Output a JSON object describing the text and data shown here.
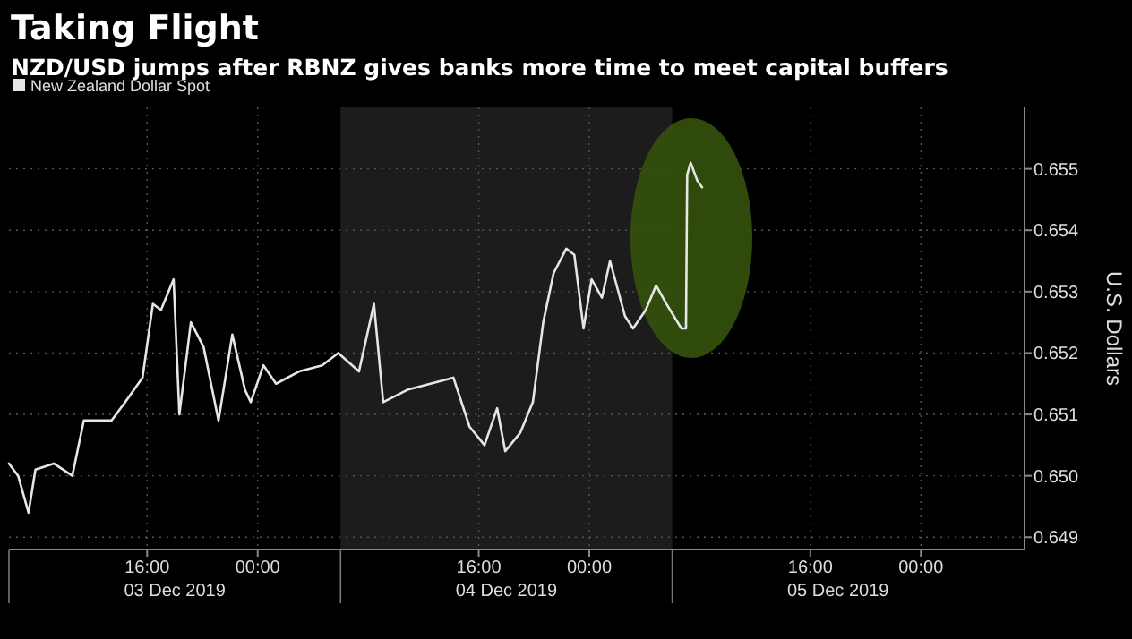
{
  "chart_data": {
    "type": "line",
    "title": "Taking Flight",
    "subtitle": "NZD/USD jumps after RBNZ gives banks more time to meet capital buffers",
    "ylabel": "U.S. Dollars",
    "series": [
      {
        "name": "New Zealand Dollar Spot",
        "color": "#e6e6e6",
        "x": [
          "2019-12-03T06:00",
          "2019-12-03T06:40",
          "2019-12-03T07:25",
          "2019-12-03T07:55",
          "2019-12-03T09:15",
          "2019-12-03T10:35",
          "2019-12-03T11:25",
          "2019-12-03T13:25",
          "2019-12-03T14:25",
          "2019-12-03T15:40",
          "2019-12-03T16:25",
          "2019-12-03T17:00",
          "2019-12-03T17:55",
          "2019-12-03T18:20",
          "2019-12-03T19:10",
          "2019-12-03T20:05",
          "2019-12-03T21:10",
          "2019-12-03T22:10",
          "2019-12-03T23:05",
          "2019-12-03T23:30",
          "2019-12-04T00:25",
          "2019-12-04T01:20",
          "2019-12-04T03:00",
          "2019-12-04T04:40",
          "2019-12-04T05:50",
          "2019-12-04T07:20",
          "2019-12-04T08:25",
          "2019-12-04T09:05",
          "2019-12-04T10:50",
          "2019-12-04T12:30",
          "2019-12-04T14:10",
          "2019-12-04T15:20",
          "2019-12-04T16:25",
          "2019-12-04T17:20",
          "2019-12-04T17:55",
          "2019-12-04T19:00",
          "2019-12-04T19:55",
          "2019-12-04T20:40",
          "2019-12-04T21:25",
          "2019-12-04T22:20",
          "2019-12-04T22:55",
          "2019-12-04T23:35",
          "2019-12-05T00:10",
          "2019-12-05T00:55",
          "2019-12-05T01:30",
          "2019-12-05T02:35",
          "2019-12-05T03:10",
          "2019-12-05T04:05",
          "2019-12-05T04:50",
          "2019-12-05T05:35",
          "2019-12-05T06:40",
          "2019-12-05T07:00",
          "2019-12-05T07:05",
          "2019-12-05T07:20",
          "2019-12-05T07:50",
          "2019-12-05T08:10"
        ],
        "values": [
          0.6502,
          0.65,
          0.6494,
          0.6501,
          0.6502,
          0.65,
          0.6509,
          0.6509,
          0.6512,
          0.6516,
          0.6528,
          0.6527,
          0.6532,
          0.651,
          0.6525,
          0.6521,
          0.6509,
          0.6523,
          0.6514,
          0.6512,
          0.6518,
          0.6515,
          0.6517,
          0.6518,
          0.652,
          0.6517,
          0.6528,
          0.6512,
          0.6514,
          0.6515,
          0.6516,
          0.6508,
          0.6505,
          0.6511,
          0.6504,
          0.6507,
          0.6512,
          0.6525,
          0.6533,
          0.6537,
          0.6536,
          0.6524,
          0.6532,
          0.6529,
          0.6535,
          0.6526,
          0.6524,
          0.6527,
          0.6531,
          0.6528,
          0.6524,
          0.6524,
          0.6549,
          0.6551,
          0.6548,
          0.6547
        ]
      }
    ],
    "xlim": [
      "2019-12-03T06:00",
      "2019-12-06T07:30"
    ],
    "xticks": [
      {
        "value": "2019-12-03T16:00",
        "label": "16:00"
      },
      {
        "value": "2019-12-04T00:00",
        "label": "00:00"
      },
      {
        "value": "2019-12-04T16:00",
        "label": "16:00"
      },
      {
        "value": "2019-12-05T00:00",
        "label": "00:00"
      },
      {
        "value": "2019-12-05T16:00",
        "label": "16:00"
      },
      {
        "value": "2019-12-06T00:00",
        "label": "00:00"
      }
    ],
    "ylim": [
      0.6488,
      0.656
    ],
    "yticks": [
      0.649,
      {
        "value": 0.65,
        "label": "0.650"
      },
      0.651,
      0.652,
      0.653,
      0.654,
      0.655
    ],
    "x2lim": [
      "2019-12-03T06:00",
      "2019-12-06T07:30"
    ],
    "x2ticks": [
      {
        "value": "2019-12-03T18:00",
        "label": "03 Dec 2019"
      },
      {
        "value": "2019-12-04T18:00",
        "label": "04 Dec 2019"
      },
      {
        "value": "2019-12-05T18:00",
        "label": "05 Dec 2019"
      }
    ],
    "bands": [
      {
        "axis": "x",
        "from": "2019-12-04T06:00",
        "to": "2019-12-05T06:00",
        "color": "#1c1c1c"
      }
    ],
    "grid": true,
    "legend": "top left",
    "line_style": "solid",
    "marker": "none"
  }
}
